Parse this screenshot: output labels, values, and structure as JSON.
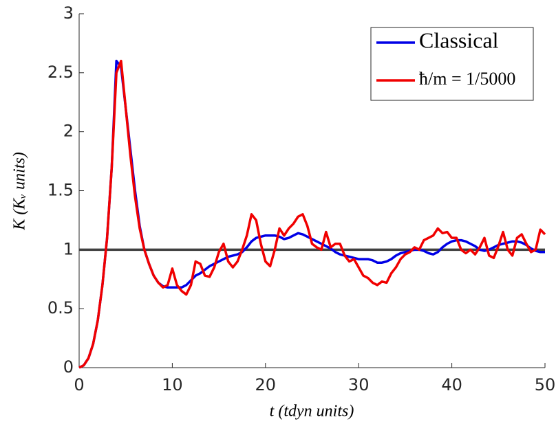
{
  "chart_data": {
    "type": "line",
    "xlabel": "t (tdyn units)",
    "ylabel": "K (Kᵥ units)",
    "x": [
      0,
      0.5,
      1,
      1.5,
      2,
      2.5,
      3,
      3.5,
      4,
      4.5,
      5,
      5.5,
      6,
      6.5,
      7,
      7.5,
      8,
      8.5,
      9,
      9.5,
      10,
      10.5,
      11,
      11.5,
      12,
      12.5,
      13,
      13.5,
      14,
      14.5,
      15,
      15.5,
      16,
      16.5,
      17,
      17.5,
      18,
      18.5,
      19,
      19.5,
      20,
      20.5,
      21,
      21.5,
      22,
      22.5,
      23,
      23.5,
      24,
      24.5,
      25,
      25.5,
      26,
      26.5,
      27,
      27.5,
      28,
      28.5,
      29,
      29.5,
      30,
      30.5,
      31,
      31.5,
      32,
      32.5,
      33,
      33.5,
      34,
      34.5,
      35,
      35.5,
      36,
      36.5,
      37,
      37.5,
      38,
      38.5,
      39,
      39.5,
      40,
      40.5,
      41,
      41.5,
      42,
      42.5,
      43,
      43.5,
      44,
      44.5,
      45,
      45.5,
      46,
      46.5,
      47,
      47.5,
      48,
      48.5,
      49,
      49.5,
      50
    ],
    "series": [
      {
        "name": "Classical",
        "color": "#0000e6",
        "values": [
          0,
          0.02,
          0.08,
          0.2,
          0.4,
          0.7,
          1.1,
          1.7,
          2.6,
          2.55,
          2.2,
          1.85,
          1.5,
          1.2,
          1.0,
          0.88,
          0.78,
          0.72,
          0.69,
          0.68,
          0.68,
          0.68,
          0.68,
          0.7,
          0.74,
          0.78,
          0.8,
          0.83,
          0.86,
          0.88,
          0.9,
          0.92,
          0.94,
          0.95,
          0.96,
          0.98,
          1.02,
          1.07,
          1.1,
          1.11,
          1.12,
          1.12,
          1.12,
          1.11,
          1.09,
          1.1,
          1.12,
          1.14,
          1.13,
          1.11,
          1.09,
          1.07,
          1.05,
          1.03,
          1.01,
          0.98,
          0.96,
          0.95,
          0.94,
          0.93,
          0.92,
          0.92,
          0.92,
          0.91,
          0.89,
          0.89,
          0.9,
          0.92,
          0.95,
          0.97,
          0.98,
          0.99,
          1.0,
          1.0,
          0.99,
          0.97,
          0.96,
          0.98,
          1.02,
          1.05,
          1.07,
          1.08,
          1.08,
          1.07,
          1.05,
          1.03,
          1.0,
          0.99,
          1.0,
          1.02,
          1.04,
          1.05,
          1.06,
          1.07,
          1.07,
          1.06,
          1.04,
          1.01,
          0.99,
          0.98,
          0.98
        ]
      },
      {
        "name": "ħ/m = 1/5000",
        "color": "#f00000",
        "values": [
          0,
          0.02,
          0.08,
          0.2,
          0.4,
          0.7,
          1.1,
          1.7,
          2.5,
          2.6,
          2.2,
          1.8,
          1.45,
          1.18,
          1.0,
          0.88,
          0.78,
          0.72,
          0.68,
          0.7,
          0.84,
          0.7,
          0.65,
          0.62,
          0.7,
          0.9,
          0.88,
          0.78,
          0.77,
          0.85,
          0.98,
          1.05,
          0.9,
          0.85,
          0.9,
          1.0,
          1.12,
          1.3,
          1.25,
          1.05,
          0.9,
          0.86,
          1.0,
          1.18,
          1.12,
          1.18,
          1.22,
          1.28,
          1.3,
          1.2,
          1.05,
          1.02,
          1.0,
          1.15,
          1.02,
          1.05,
          1.05,
          0.95,
          0.9,
          0.92,
          0.85,
          0.78,
          0.76,
          0.72,
          0.7,
          0.73,
          0.72,
          0.8,
          0.85,
          0.92,
          0.96,
          0.98,
          1.02,
          1.0,
          1.08,
          1.1,
          1.12,
          1.18,
          1.14,
          1.15,
          1.1,
          1.1,
          1.0,
          0.97,
          1.0,
          0.96,
          1.02,
          1.1,
          0.95,
          0.93,
          1.03,
          1.15,
          1.0,
          0.95,
          1.1,
          1.13,
          1.05,
          0.98,
          1.0,
          1.17,
          1.13
        ]
      }
    ],
    "hline": {
      "value": 1,
      "color": "#404040"
    },
    "xlim": [
      0,
      50
    ],
    "xticks": [
      0,
      10,
      20,
      30,
      40,
      50
    ],
    "ylim": [
      0,
      3
    ],
    "yticks": [
      0,
      0.5,
      1,
      1.5,
      2,
      2.5,
      3
    ],
    "legend": "top-right"
  }
}
